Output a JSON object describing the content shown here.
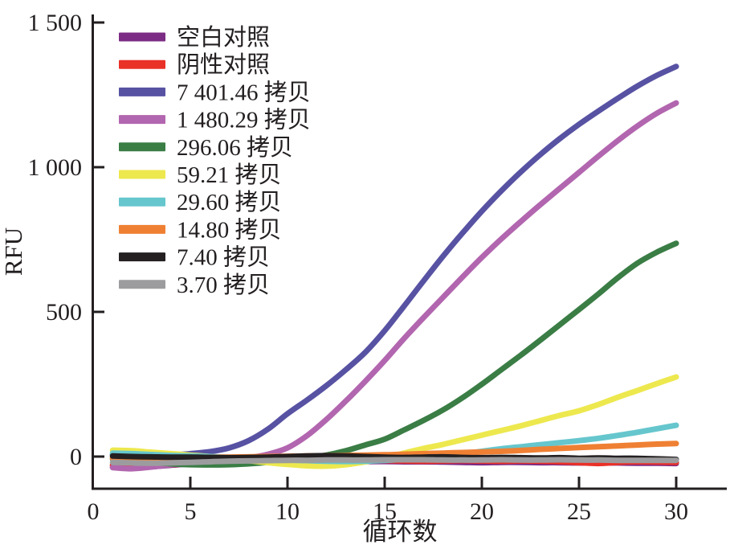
{
  "chart_data": {
    "type": "line",
    "title": "",
    "xlabel": "循环数",
    "ylabel": "RFU",
    "xlim": [
      0,
      32.6
    ],
    "ylim": [
      -111,
      1528
    ],
    "grid": false,
    "legend_position": "upper-left",
    "axis_color": "#231F20",
    "xticks": [
      {
        "value": 0,
        "label": "0"
      },
      {
        "value": 5,
        "label": "5"
      },
      {
        "value": 10,
        "label": "10"
      },
      {
        "value": 15,
        "label": "15"
      },
      {
        "value": 20,
        "label": "20"
      },
      {
        "value": 25,
        "label": "25"
      },
      {
        "value": 30,
        "label": "30"
      }
    ],
    "yticks": [
      {
        "value": 0,
        "label": "0"
      },
      {
        "value": 500,
        "label": "500"
      },
      {
        "value": 1000,
        "label": "1 000"
      },
      {
        "value": 1500,
        "label": "1 500"
      }
    ],
    "x": [
      1,
      2,
      3,
      4,
      5,
      6,
      7,
      8,
      9,
      10,
      11,
      12,
      13,
      14,
      15,
      16,
      17,
      18,
      19,
      20,
      21,
      22,
      23,
      24,
      25,
      26,
      27,
      28,
      29,
      30
    ],
    "series": [
      {
        "id": "blank-control",
        "label": "空白对照",
        "color": "#7C2C84",
        "values": [
          -36,
          -40,
          -35,
          -30,
          -25,
          -22,
          -20,
          -19,
          -18,
          -17,
          -17,
          -18,
          -18,
          -17,
          -17,
          -18,
          -18,
          -19,
          -20,
          -21,
          -20,
          -20,
          -21,
          -21,
          -22,
          -22,
          -22,
          -23,
          -23,
          -24
        ]
      },
      {
        "id": "negative-control",
        "label": "阴性对照",
        "color": "#E93128",
        "values": [
          -30,
          -34,
          -32,
          -28,
          -24,
          -20,
          -18,
          -17,
          -16,
          -15,
          -14,
          -15,
          -16,
          -15,
          -14,
          -15,
          -16,
          -15,
          -14,
          -15,
          -16,
          -15,
          -16,
          -18,
          -21,
          -24,
          -20,
          -18,
          -19,
          -20
        ]
      },
      {
        "id": "copies-7401-46",
        "label": "7 401.46 拷贝",
        "color": "#5852A3",
        "values": [
          8,
          4,
          3,
          5,
          10,
          17,
          30,
          55,
          95,
          148,
          195,
          245,
          300,
          360,
          435,
          520,
          607,
          692,
          772,
          848,
          918,
          983,
          1043,
          1098,
          1148,
          1194,
          1238,
          1280,
          1317,
          1348
        ]
      },
      {
        "id": "copies-1480-29",
        "label": "1 480.29 拷贝",
        "color": "#B266AF",
        "values": [
          -38,
          -42,
          -36,
          -28,
          -22,
          -16,
          -10,
          -4,
          8,
          30,
          72,
          128,
          192,
          260,
          332,
          408,
          480,
          550,
          620,
          688,
          752,
          812,
          870,
          926,
          982,
          1038,
          1092,
          1142,
          1186,
          1222
        ]
      },
      {
        "id": "copies-296-06",
        "label": "296.06 拷贝",
        "color": "#3A7D45",
        "values": [
          -8,
          -14,
          -20,
          -25,
          -28,
          -29,
          -28,
          -25,
          -20,
          -13,
          -5,
          5,
          20,
          40,
          60,
          92,
          125,
          161,
          203,
          250,
          300,
          350,
          402,
          455,
          508,
          562,
          618,
          668,
          706,
          737
        ]
      },
      {
        "id": "copies-59-21",
        "label": "59.21 拷贝",
        "color": "#EDE84E",
        "values": [
          22,
          20,
          15,
          10,
          5,
          0,
          -7,
          -14,
          -21,
          -27,
          -32,
          -33,
          -28,
          -18,
          -5,
          12,
          28,
          42,
          58,
          74,
          90,
          106,
          124,
          142,
          158,
          180,
          205,
          228,
          252,
          275
        ]
      },
      {
        "id": "copies-29-60",
        "label": "29.60 拷贝",
        "color": "#66C6CD",
        "values": [
          12,
          10,
          7,
          4,
          2,
          0,
          -3,
          -6,
          -9,
          -12,
          -14,
          -16,
          -17,
          -16,
          -13,
          -9,
          -4,
          2,
          9,
          18,
          27,
          34,
          41,
          48,
          55,
          63,
          73,
          84,
          96,
          108
        ]
      },
      {
        "id": "copies-14-80",
        "label": "14.80 拷贝",
        "color": "#EF8033",
        "values": [
          -5,
          -6,
          -6,
          -5,
          -4,
          -3,
          -2,
          -1,
          0,
          1,
          2,
          3,
          4,
          5,
          6,
          8,
          10,
          12,
          14,
          16,
          18,
          21,
          25,
          28,
          31,
          34,
          37,
          40,
          43,
          45
        ]
      },
      {
        "id": "copies-7-40",
        "label": "7.40 拷贝",
        "color": "#242021",
        "values": [
          2,
          0,
          -1,
          -2,
          -2,
          -3,
          -4,
          -3,
          -2,
          0,
          2,
          3,
          2,
          0,
          -2,
          -3,
          -2,
          -1,
          -3,
          -4,
          -3,
          -4,
          -5,
          -4,
          -6,
          -5,
          -6,
          -6,
          -8,
          -10
        ]
      },
      {
        "id": "copies-3-70",
        "label": "3.70 拷贝",
        "color": "#9C9C9E",
        "values": [
          -20,
          -22,
          -23,
          -22,
          -20,
          -18,
          -16,
          -15,
          -14,
          -13,
          -13,
          -12,
          -12,
          -12,
          -11,
          -11,
          -11,
          -12,
          -12,
          -12,
          -11,
          -12,
          -12,
          -11,
          -12,
          -12,
          -13,
          -13,
          -13,
          -13
        ]
      }
    ]
  }
}
